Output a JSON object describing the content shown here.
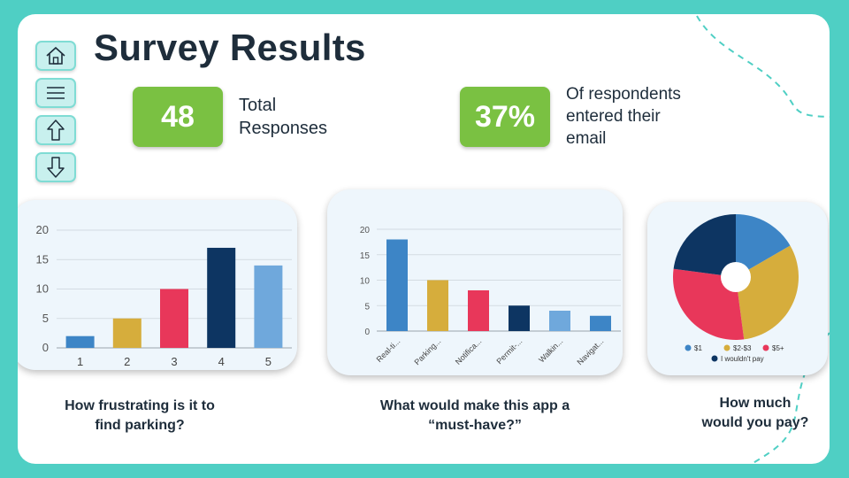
{
  "header": {
    "title": "Survey Results"
  },
  "nav": [
    {
      "name": "home-icon"
    },
    {
      "name": "menu-icon"
    },
    {
      "name": "arrow-up-icon"
    },
    {
      "name": "arrow-down-icon"
    }
  ],
  "stats": [
    {
      "value": "48",
      "label_lines": [
        "Total",
        "Responses"
      ]
    },
    {
      "value": "37%",
      "label_lines": [
        "Of respondents",
        "entered their",
        "email"
      ]
    }
  ],
  "colors": {
    "background": "#4fcfc4",
    "kpi": "#7ac142",
    "blue": "#3d85c6",
    "gold": "#d6ad3c",
    "red": "#e8375a",
    "navy": "#0d3562",
    "lightblue": "#6fa8dc"
  },
  "questions": [
    {
      "lines": [
        "How frustrating is it to",
        "find parking?"
      ]
    },
    {
      "lines": [
        "What would make this app a",
        "“must-have?”"
      ]
    },
    {
      "lines": [
        "How much",
        "would you pay?"
      ]
    }
  ],
  "chart_data": [
    {
      "type": "bar",
      "categories": [
        "1",
        "2",
        "3",
        "4",
        "5"
      ],
      "values": [
        2,
        5,
        10,
        17,
        14
      ],
      "colors": [
        "#3d85c6",
        "#d6ad3c",
        "#e8375a",
        "#0d3562",
        "#6fa8dc"
      ],
      "ylim": [
        0,
        20
      ],
      "yticks": [
        "0",
        "5",
        "10",
        "15",
        "20"
      ],
      "grid": true
    },
    {
      "type": "bar",
      "categories": [
        "Real-ti...",
        "Parking...",
        "Notifica...",
        "Permit-...",
        "Walkin...",
        "Navigat..."
      ],
      "values": [
        18,
        10,
        8,
        5,
        4,
        3
      ],
      "colors": [
        "#3d85c6",
        "#d6ad3c",
        "#e8375a",
        "#0d3562",
        "#6fa8dc",
        "#3d85c6"
      ],
      "ylim": [
        0,
        20
      ],
      "yticks": [
        "0",
        "5",
        "10",
        "15",
        "20"
      ],
      "grid": true
    },
    {
      "type": "pie",
      "labels": [
        "$1",
        "$2-$3",
        "$5+",
        "I wouldn't pay"
      ],
      "values": [
        8,
        15,
        14,
        11
      ],
      "colors": [
        "#3d85c6",
        "#d6ad3c",
        "#e8375a",
        "#0d3562"
      ],
      "legend": "bottom"
    }
  ]
}
